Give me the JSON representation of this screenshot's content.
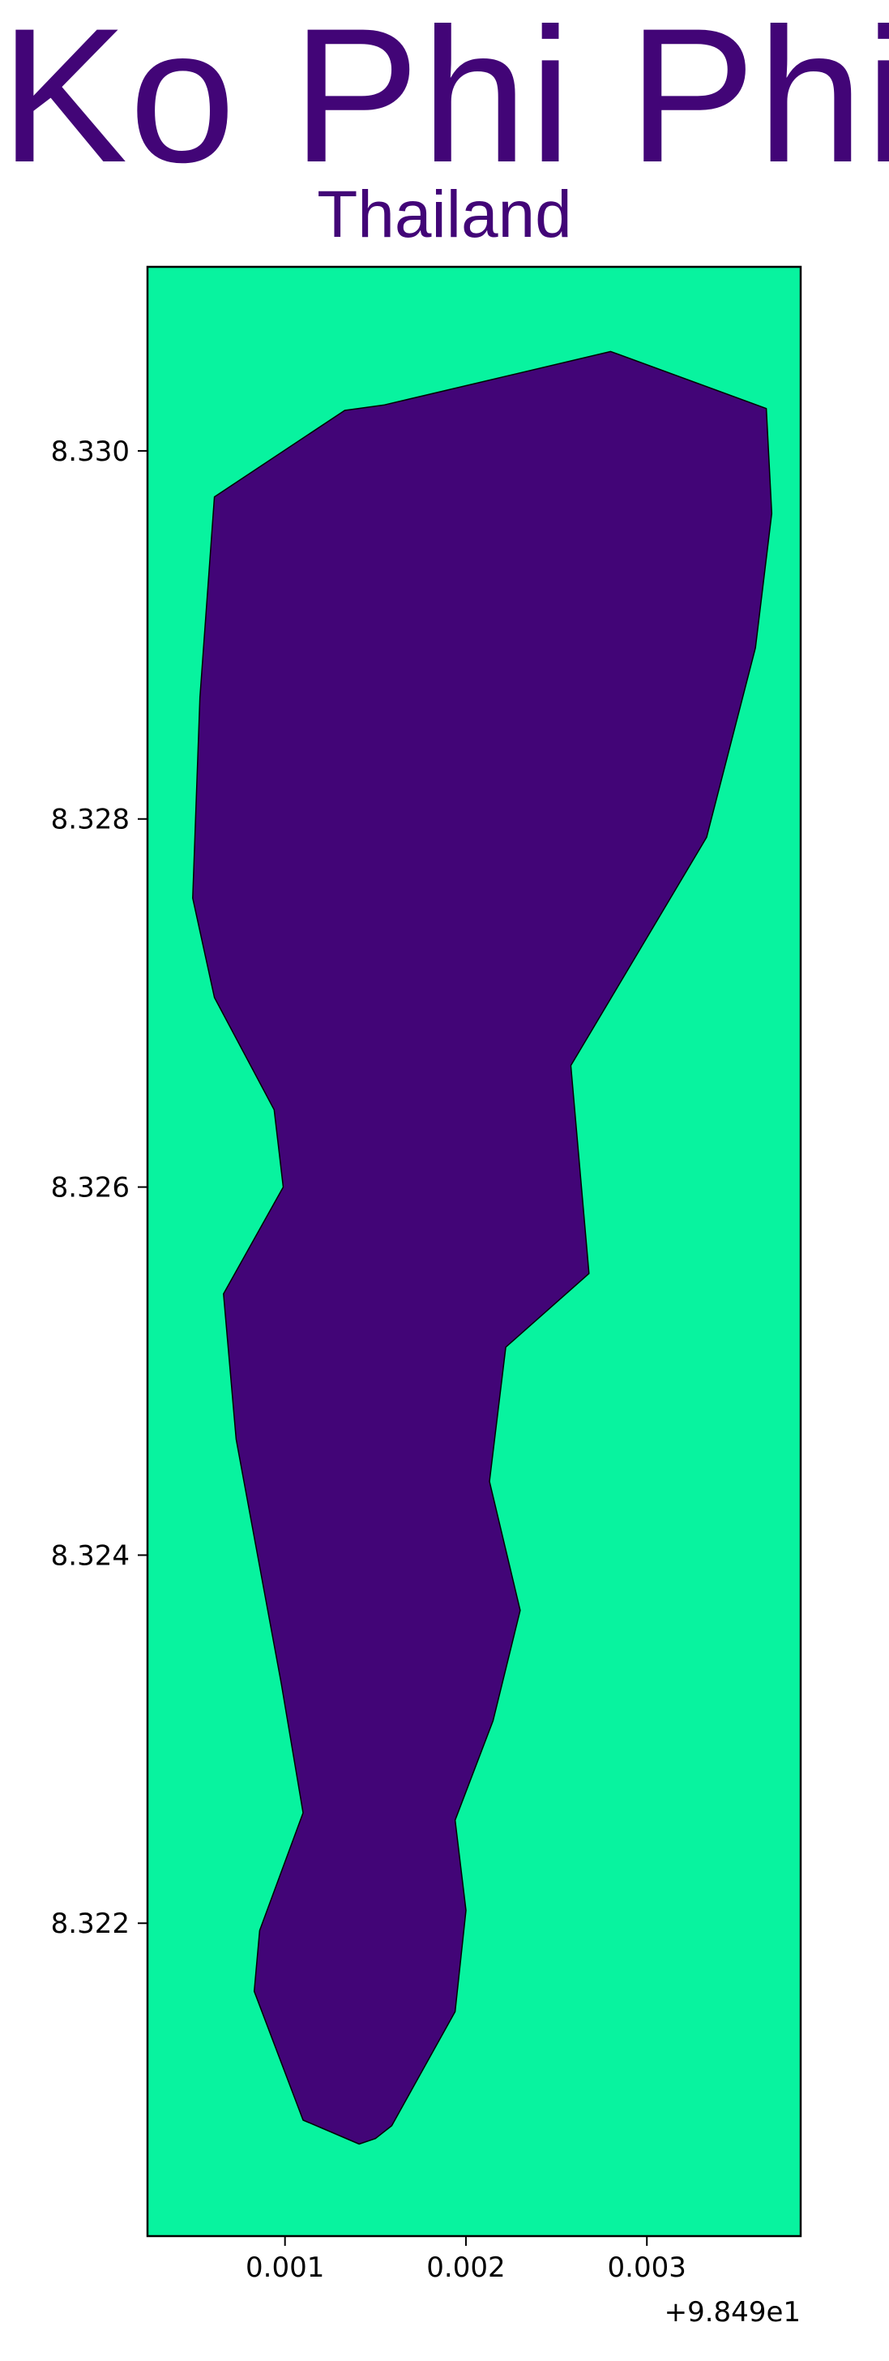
{
  "map": {
    "title": "Ko Phi Phi",
    "subtitle": "Thailand",
    "colors": {
      "water": "#08f39f",
      "land": "#420577",
      "text": "#420577",
      "frame": "#000000"
    },
    "x_axis": {
      "offset_label": "+9.849e1",
      "ticks": [
        {
          "value": 0.001,
          "label": "0.001"
        },
        {
          "value": 0.002,
          "label": "0.002"
        },
        {
          "value": 0.003,
          "label": "0.003"
        }
      ],
      "range": [
        0.00024,
        0.00385
      ]
    },
    "y_axis": {
      "ticks": [
        {
          "value": 8.322,
          "label": "8.322"
        },
        {
          "value": 8.324,
          "label": "8.324"
        },
        {
          "value": 8.326,
          "label": "8.326"
        },
        {
          "value": 8.328,
          "label": "8.328"
        },
        {
          "value": 8.33,
          "label": "8.330"
        }
      ],
      "range": [
        8.3203,
        8.331
      ]
    },
    "island_polygon": [
      [
        0.0028,
        8.33054
      ],
      [
        0.00366,
        8.33023
      ],
      [
        0.00369,
        8.32966
      ],
      [
        0.0036,
        8.32893
      ],
      [
        0.00333,
        8.3279
      ],
      [
        0.00258,
        8.32666
      ],
      [
        0.00268,
        8.32553
      ],
      [
        0.00222,
        8.32513
      ],
      [
        0.00213,
        8.3244
      ],
      [
        0.0023,
        8.3237
      ],
      [
        0.00215,
        8.3231
      ],
      [
        0.00194,
        8.32256
      ],
      [
        0.002,
        8.32207
      ],
      [
        0.00194,
        8.32152
      ],
      [
        0.00159,
        8.3209
      ],
      [
        0.0015,
        8.32083
      ],
      [
        0.00141,
        8.3208
      ],
      [
        0.0011,
        8.32093
      ],
      [
        0.00083,
        8.32163
      ],
      [
        0.00086,
        8.32196
      ],
      [
        0.0011,
        8.3226
      ],
      [
        0.00098,
        8.3233
      ],
      [
        0.00073,
        8.32463
      ],
      [
        0.00066,
        8.32542
      ],
      [
        0.00099,
        8.326
      ],
      [
        0.00094,
        8.32642
      ],
      [
        0.00061,
        8.32703
      ],
      [
        0.00049,
        8.32757
      ],
      [
        0.00053,
        8.32866
      ],
      [
        0.00061,
        8.32975
      ],
      [
        0.00133,
        8.33022
      ],
      [
        0.00155,
        8.33025
      ],
      [
        0.0028,
        8.33054
      ]
    ]
  }
}
